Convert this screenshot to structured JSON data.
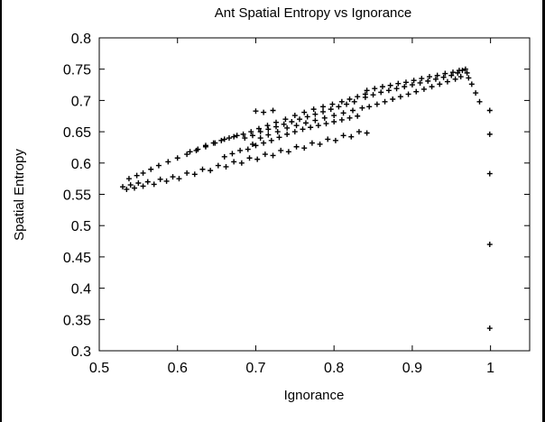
{
  "chart_data": {
    "type": "scatter",
    "title": "Ant Spatial Entropy vs Ignorance",
    "xlabel": "Ignorance",
    "ylabel": "Spatial Entropy",
    "xlim": [
      0.5,
      1.05
    ],
    "ylim": [
      0.3,
      0.8
    ],
    "xticks": [
      "0.5",
      "0.6",
      "0.7",
      "0.8",
      "0.9",
      "1"
    ],
    "yticks": [
      "0.3",
      "0.35",
      "0.4",
      "0.45",
      "0.5",
      "0.55",
      "0.6",
      "0.65",
      "0.7",
      "0.75",
      "0.8"
    ],
    "grid": false,
    "marker": "+",
    "color": "#000000",
    "series": [
      {
        "points": [
          [
            0.53,
            0.562
          ],
          [
            0.535,
            0.558
          ],
          [
            0.54,
            0.565
          ],
          [
            0.545,
            0.56
          ],
          [
            0.55,
            0.568
          ],
          [
            0.556,
            0.563
          ],
          [
            0.562,
            0.57
          ],
          [
            0.57,
            0.566
          ],
          [
            0.578,
            0.574
          ],
          [
            0.586,
            0.571
          ],
          [
            0.594,
            0.578
          ],
          [
            0.602,
            0.575
          ],
          [
            0.612,
            0.584
          ],
          [
            0.622,
            0.582
          ],
          [
            0.632,
            0.59
          ],
          [
            0.642,
            0.588
          ],
          [
            0.652,
            0.596
          ],
          [
            0.662,
            0.594
          ],
          [
            0.672,
            0.602
          ],
          [
            0.682,
            0.6
          ],
          [
            0.692,
            0.608
          ],
          [
            0.702,
            0.606
          ],
          [
            0.712,
            0.614
          ],
          [
            0.722,
            0.612
          ],
          [
            0.732,
            0.62
          ],
          [
            0.742,
            0.618
          ],
          [
            0.752,
            0.626
          ],
          [
            0.762,
            0.624
          ],
          [
            0.772,
            0.632
          ],
          [
            0.782,
            0.63
          ],
          [
            0.792,
            0.638
          ],
          [
            0.802,
            0.636
          ],
          [
            0.812,
            0.644
          ],
          [
            0.822,
            0.642
          ],
          [
            0.832,
            0.65
          ],
          [
            0.842,
            0.648
          ],
          [
            0.538,
            0.575
          ],
          [
            0.548,
            0.58
          ],
          [
            0.556,
            0.584
          ],
          [
            0.566,
            0.59
          ],
          [
            0.576,
            0.596
          ],
          [
            0.588,
            0.602
          ],
          [
            0.6,
            0.608
          ],
          [
            0.612,
            0.614
          ],
          [
            0.624,
            0.62
          ],
          [
            0.636,
            0.626
          ],
          [
            0.648,
            0.632
          ],
          [
            0.66,
            0.638
          ],
          [
            0.672,
            0.642
          ],
          [
            0.684,
            0.646
          ],
          [
            0.694,
            0.65
          ],
          [
            0.704,
            0.655
          ],
          [
            0.715,
            0.66
          ],
          [
            0.726,
            0.665
          ],
          [
            0.738,
            0.67
          ],
          [
            0.75,
            0.676
          ],
          [
            0.762,
            0.681
          ],
          [
            0.774,
            0.686
          ],
          [
            0.786,
            0.69
          ],
          [
            0.798,
            0.694
          ],
          [
            0.81,
            0.698
          ],
          [
            0.82,
            0.702
          ],
          [
            0.83,
            0.706
          ],
          [
            0.84,
            0.71
          ],
          [
            0.616,
            0.618
          ],
          [
            0.626,
            0.622
          ],
          [
            0.636,
            0.628
          ],
          [
            0.646,
            0.632
          ],
          [
            0.656,
            0.636
          ],
          [
            0.666,
            0.64
          ],
          [
            0.676,
            0.644
          ],
          [
            0.686,
            0.64
          ],
          [
            0.696,
            0.644
          ],
          [
            0.706,
            0.65
          ],
          [
            0.716,
            0.654
          ],
          [
            0.726,
            0.658
          ],
          [
            0.736,
            0.662
          ],
          [
            0.746,
            0.666
          ],
          [
            0.756,
            0.67
          ],
          [
            0.766,
            0.674
          ],
          [
            0.776,
            0.678
          ],
          [
            0.786,
            0.682
          ],
          [
            0.796,
            0.686
          ],
          [
            0.806,
            0.69
          ],
          [
            0.816,
            0.694
          ],
          [
            0.826,
            0.698
          ],
          [
            0.66,
            0.61
          ],
          [
            0.67,
            0.615
          ],
          [
            0.68,
            0.62
          ],
          [
            0.69,
            0.622
          ],
          [
            0.7,
            0.628
          ],
          [
            0.71,
            0.632
          ],
          [
            0.72,
            0.636
          ],
          [
            0.73,
            0.641
          ],
          [
            0.74,
            0.646
          ],
          [
            0.75,
            0.65
          ],
          [
            0.76,
            0.654
          ],
          [
            0.77,
            0.657
          ],
          [
            0.78,
            0.66
          ],
          [
            0.79,
            0.663
          ],
          [
            0.8,
            0.666
          ],
          [
            0.81,
            0.669
          ],
          [
            0.82,
            0.672
          ],
          [
            0.83,
            0.675
          ],
          [
            0.696,
            0.63
          ],
          [
            0.706,
            0.64
          ],
          [
            0.716,
            0.645
          ],
          [
            0.728,
            0.65
          ],
          [
            0.74,
            0.656
          ],
          [
            0.752,
            0.66
          ],
          [
            0.764,
            0.664
          ],
          [
            0.776,
            0.668
          ],
          [
            0.788,
            0.672
          ],
          [
            0.8,
            0.676
          ],
          [
            0.812,
            0.68
          ],
          [
            0.824,
            0.684
          ],
          [
            0.836,
            0.688
          ],
          [
            0.7,
            0.683
          ],
          [
            0.71,
            0.681
          ],
          [
            0.722,
            0.684
          ],
          [
            0.845,
            0.69
          ],
          [
            0.855,
            0.694
          ],
          [
            0.865,
            0.698
          ],
          [
            0.875,
            0.702
          ],
          [
            0.885,
            0.706
          ],
          [
            0.895,
            0.71
          ],
          [
            0.905,
            0.714
          ],
          [
            0.915,
            0.718
          ],
          [
            0.925,
            0.722
          ],
          [
            0.935,
            0.726
          ],
          [
            0.945,
            0.73
          ],
          [
            0.955,
            0.734
          ],
          [
            0.962,
            0.738
          ],
          [
            0.84,
            0.705
          ],
          [
            0.85,
            0.709
          ],
          [
            0.86,
            0.713
          ],
          [
            0.87,
            0.716
          ],
          [
            0.88,
            0.719
          ],
          [
            0.89,
            0.722
          ],
          [
            0.9,
            0.725
          ],
          [
            0.91,
            0.728
          ],
          [
            0.92,
            0.731
          ],
          [
            0.93,
            0.734
          ],
          [
            0.94,
            0.737
          ],
          [
            0.95,
            0.74
          ],
          [
            0.958,
            0.744
          ],
          [
            0.964,
            0.748
          ],
          [
            0.968,
            0.75
          ],
          [
            0.842,
            0.716
          ],
          [
            0.852,
            0.719
          ],
          [
            0.862,
            0.722
          ],
          [
            0.872,
            0.724
          ],
          [
            0.882,
            0.727
          ],
          [
            0.892,
            0.729
          ],
          [
            0.902,
            0.732
          ],
          [
            0.912,
            0.735
          ],
          [
            0.922,
            0.738
          ],
          [
            0.932,
            0.74
          ],
          [
            0.942,
            0.743
          ],
          [
            0.952,
            0.745
          ],
          [
            0.96,
            0.748
          ],
          [
            0.97,
            0.744
          ],
          [
            0.972,
            0.736
          ],
          [
            0.976,
            0.726
          ],
          [
            0.981,
            0.712
          ],
          [
            0.986,
            0.698
          ],
          [
            0.999,
            0.684
          ],
          [
            0.999,
            0.646
          ],
          [
            0.999,
            0.583
          ],
          [
            0.999,
            0.47
          ],
          [
            0.999,
            0.336
          ]
        ]
      }
    ]
  }
}
